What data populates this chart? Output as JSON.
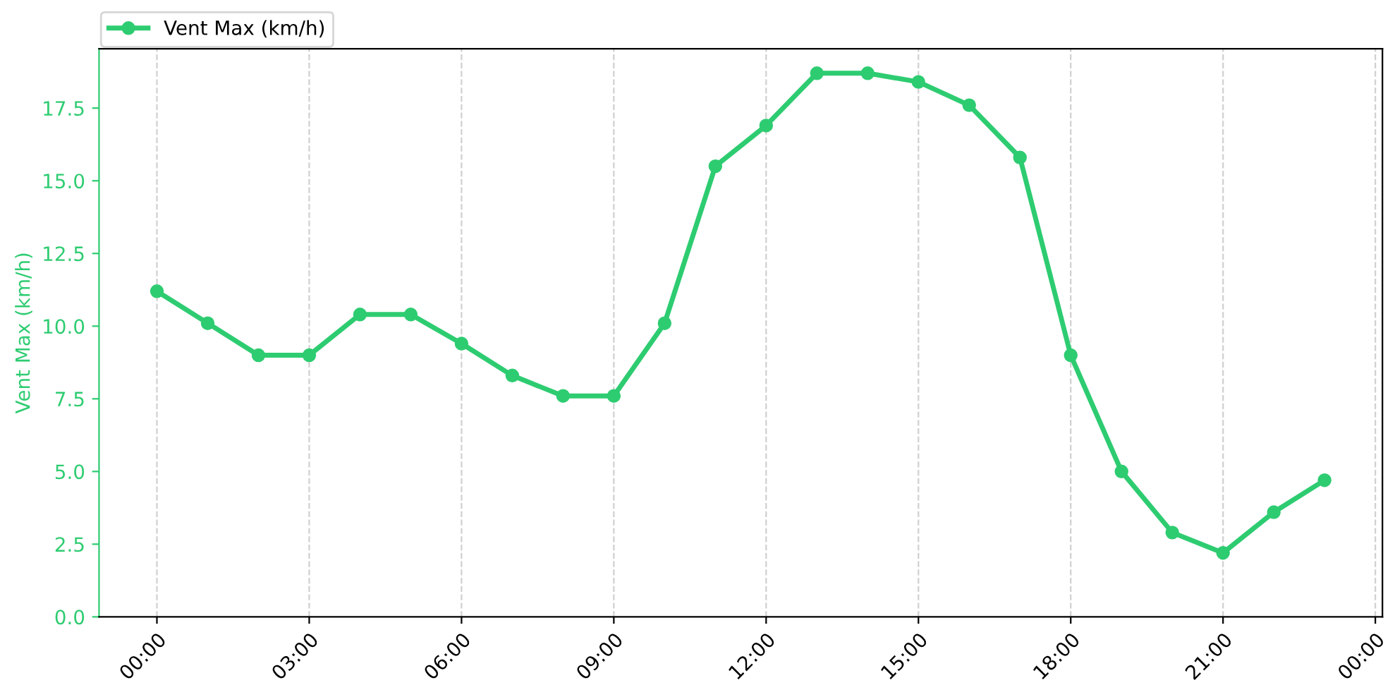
{
  "chart_data": {
    "type": "line",
    "ylabel": "Vent Max (km/h)",
    "x": [
      0,
      1,
      2,
      3,
      4,
      5,
      6,
      7,
      8,
      9,
      10,
      11,
      12,
      13,
      14,
      15,
      16,
      17,
      18,
      19,
      20,
      21,
      22,
      23
    ],
    "series": [
      {
        "name": "Vent Max (km/h)",
        "color": "#2ecc71",
        "values": [
          11.2,
          10.1,
          9.0,
          9.0,
          10.4,
          10.4,
          9.4,
          8.3,
          7.6,
          7.6,
          10.1,
          15.5,
          16.9,
          18.7,
          18.7,
          18.4,
          17.6,
          15.8,
          9.0,
          5.0,
          2.9,
          2.2,
          3.6,
          4.7
        ]
      }
    ],
    "xlim": [
      -1.14,
      24.14
    ],
    "ylim": [
      0,
      19.54
    ],
    "xticks": [
      {
        "value": 0,
        "label": "00:00"
      },
      {
        "value": 3,
        "label": "03:00"
      },
      {
        "value": 6,
        "label": "06:00"
      },
      {
        "value": 9,
        "label": "09:00"
      },
      {
        "value": 12,
        "label": "12:00"
      },
      {
        "value": 15,
        "label": "15:00"
      },
      {
        "value": 18,
        "label": "18:00"
      },
      {
        "value": 21,
        "label": "21:00"
      },
      {
        "value": 24,
        "label": "00:00"
      }
    ],
    "yticks": [
      {
        "value": 0,
        "label": "0.0"
      },
      {
        "value": 2.5,
        "label": "2.5"
      },
      {
        "value": 5,
        "label": "5.0"
      },
      {
        "value": 7.5,
        "label": "7.5"
      },
      {
        "value": 10,
        "label": "10.0"
      },
      {
        "value": 12.5,
        "label": "12.5"
      },
      {
        "value": 15,
        "label": "15.0"
      },
      {
        "value": 17.5,
        "label": "17.5"
      }
    ],
    "grid": "x",
    "legend": "top left",
    "marker": "circle",
    "line_style": "solid"
  }
}
